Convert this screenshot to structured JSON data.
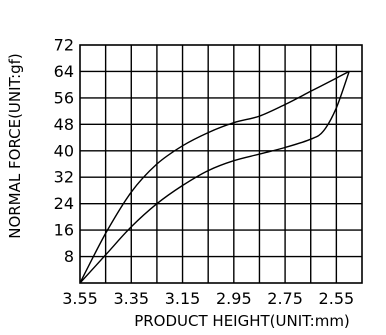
{
  "chart_data": {
    "type": "line",
    "title": "",
    "xlabel": "PRODUCT  HEIGHT(UNIT:mm)",
    "ylabel": "NORMAL  FORCE(UNIT:gf)",
    "x_ticks": [
      "3.55",
      "3.35",
      "3.15",
      "2.95",
      "2.75",
      "2.55"
    ],
    "y_ticks": [
      "8",
      "16",
      "24",
      "32",
      "40",
      "48",
      "56",
      "64",
      "72"
    ],
    "xlim": [
      3.55,
      2.45
    ],
    "ylim": [
      0,
      72
    ],
    "grid": true,
    "series": [
      {
        "x": [
          3.55,
          3.45,
          3.35,
          3.25,
          3.15,
          3.05,
          2.95,
          2.85,
          2.75,
          2.65,
          2.6,
          2.55,
          2.5
        ],
        "values": [
          0,
          8.5,
          17,
          24,
          29.5,
          34,
          37,
          39,
          41,
          43.5,
          46,
          53,
          64
        ]
      },
      {
        "x": [
          3.55,
          3.45,
          3.35,
          3.25,
          3.15,
          3.05,
          2.95,
          2.85,
          2.75,
          2.65,
          2.55,
          2.5
        ],
        "values": [
          0,
          15,
          27.5,
          36,
          41.5,
          45.5,
          48.5,
          50.5,
          54,
          58,
          62,
          64
        ]
      }
    ]
  }
}
